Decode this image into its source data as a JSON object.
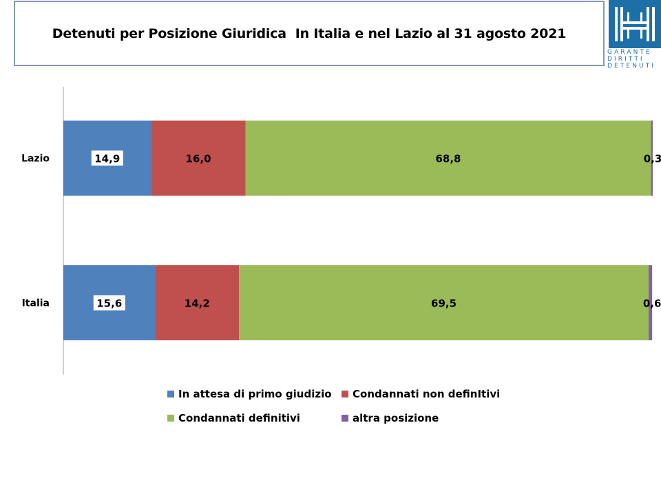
{
  "header": {
    "title": "Detenuti per Posizione Giuridica  In Italia e nel Lazio al 31 agosto 2021"
  },
  "logo": {
    "lines": [
      "GARANTE",
      "DIRITTI",
      "DETENUTI"
    ],
    "color": "#1d6fa8"
  },
  "chart_data": {
    "type": "bar",
    "orientation": "horizontal",
    "stacked": true,
    "title": "Detenuti per Posizione Giuridica  In Italia e nel Lazio al 31 agosto 2021",
    "categories": [
      "Lazio",
      "Italia"
    ],
    "xlim": [
      0,
      100
    ],
    "grid": false,
    "legend_position": "bottom",
    "series": [
      {
        "name": "In attesa di primo giudizio",
        "values": [
          14.9,
          15.6
        ],
        "labels": [
          "14,9",
          "15,6"
        ],
        "color": "#4f81bd"
      },
      {
        "name": "Condannati non definItivi",
        "values": [
          16.0,
          14.2
        ],
        "labels": [
          "16,0",
          "14,2"
        ],
        "color": "#c0504d"
      },
      {
        "name": "Condannati definitivi",
        "values": [
          68.8,
          69.5
        ],
        "labels": [
          "68,8",
          "69,5"
        ],
        "color": "#9bbb59"
      },
      {
        "name": "altra posizione",
        "values": [
          0.3,
          0.6
        ],
        "labels": [
          "0,3",
          "0,6"
        ],
        "color": "#8064a2"
      }
    ]
  }
}
